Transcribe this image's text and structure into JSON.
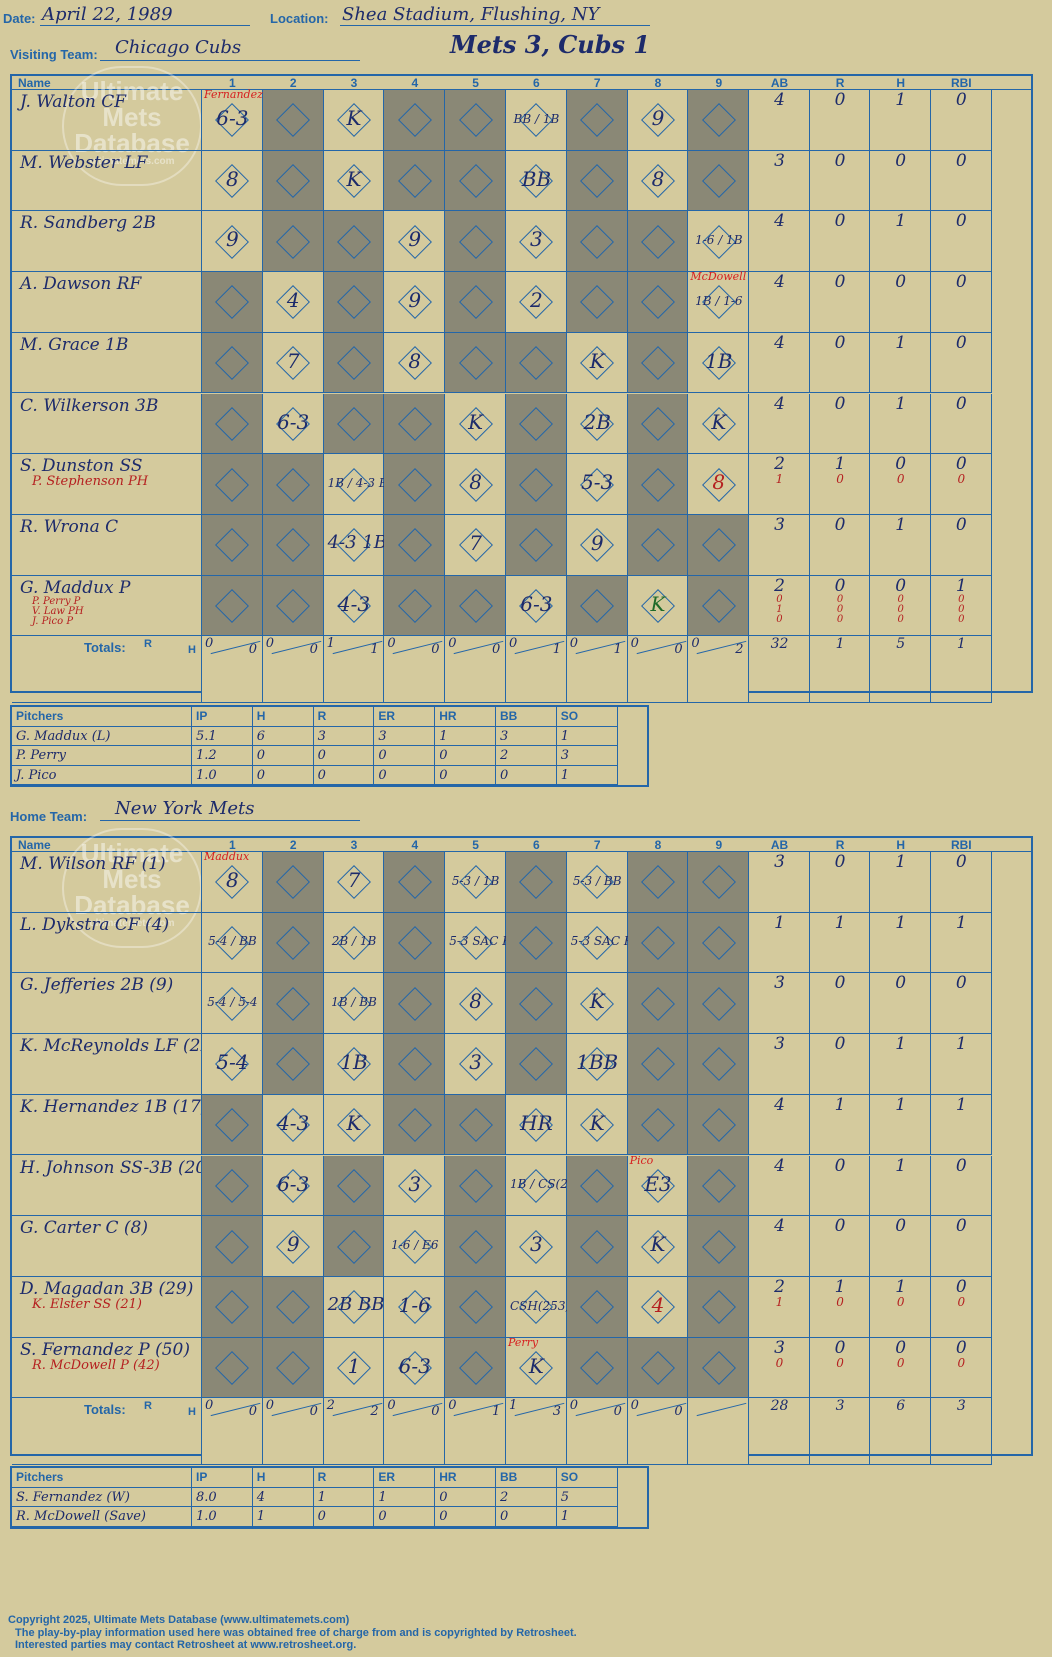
{
  "header": {
    "date_label": "Date:",
    "date": "April 22, 1989",
    "location_label": "Location:",
    "location": "Shea Stadium, Flushing, NY",
    "visiting_label": "Visiting Team:",
    "visiting_team": "Chicago Cubs",
    "home_label": "Home Team:",
    "home_team": "New York Mets",
    "score_title": "Mets 3, Cubs 1"
  },
  "watermark": {
    "line1": "Ultimate",
    "line2": "Mets",
    "line3": "Database",
    "line4": "ultimatemets.com"
  },
  "columns": {
    "name": "Name",
    "innings": [
      "1",
      "2",
      "3",
      "4",
      "5",
      "6",
      "7",
      "8",
      "9"
    ],
    "stats": [
      "AB",
      "R",
      "H",
      "RBI"
    ],
    "totals_label": "Totals:",
    "r": "R",
    "h": "H"
  },
  "visitors": {
    "rows": [
      {
        "name": "J. Walton CF",
        "subs": [],
        "stats": [
          [
            "4",
            "0",
            "1",
            "0"
          ]
        ],
        "marks": {
          "1": "6-3",
          "3": "K",
          "6": "BB / 1B",
          "8": "9"
        },
        "notes": {
          "1": "Fernandez"
        }
      },
      {
        "name": "M. Webster LF",
        "subs": [],
        "stats": [
          [
            "3",
            "0",
            "0",
            "0"
          ]
        ],
        "marks": {
          "1": "8",
          "3": "K",
          "6": "BB",
          "8": "8"
        }
      },
      {
        "name": "R. Sandberg 2B",
        "subs": [],
        "stats": [
          [
            "4",
            "0",
            "1",
            "0"
          ]
        ],
        "marks": {
          "1": "9",
          "4": "9",
          "6": "3",
          "9": "1-6 / 1B"
        }
      },
      {
        "name": "A. Dawson RF",
        "subs": [],
        "stats": [
          [
            "4",
            "0",
            "0",
            "0"
          ]
        ],
        "marks": {
          "2": "4",
          "4": "9",
          "6": "2",
          "9": "1B / 1-6"
        },
        "notes": {
          "9": "McDowell"
        }
      },
      {
        "name": "M. Grace 1B",
        "subs": [],
        "stats": [
          [
            "4",
            "0",
            "1",
            "0"
          ]
        ],
        "marks": {
          "2": "7",
          "4": "8",
          "7": "K",
          "9": "1B"
        }
      },
      {
        "name": "C. Wilkerson 3B",
        "subs": [],
        "stats": [
          [
            "4",
            "0",
            "1",
            "0"
          ]
        ],
        "marks": {
          "2": "6-3",
          "5": "K",
          "7": "2B",
          "9": "K"
        }
      },
      {
        "name": "S. Dunston SS",
        "subs": [
          "P. Stephenson PH"
        ],
        "stats": [
          [
            "2",
            "1",
            "0",
            "0"
          ],
          [
            "1",
            "0",
            "0",
            "0"
          ]
        ],
        "marks": {
          "3": "1B / 4-3 BB",
          "5": "8",
          "7": "5-3",
          "9": "8"
        }
      },
      {
        "name": "R. Wrona C",
        "subs": [],
        "stats": [
          [
            "3",
            "0",
            "1",
            "0"
          ]
        ],
        "marks": {
          "3": "4-3 1B",
          "5": "7",
          "7": "9"
        }
      },
      {
        "name": "G. Maddux P",
        "subs": [
          "P. Perry P",
          "V. Law PH",
          "J. Pico P"
        ],
        "stats": [
          [
            "2",
            "0",
            "0",
            "1"
          ],
          [
            "0",
            "0",
            "0",
            "0"
          ],
          [
            "1",
            "0",
            "0",
            "0"
          ],
          [
            "0",
            "0",
            "0",
            "0"
          ]
        ],
        "marks": {
          "3": "4-3",
          "6": "6-3",
          "8": "K"
        }
      }
    ],
    "totals_innings": [
      [
        "0",
        "0"
      ],
      [
        "0",
        "0"
      ],
      [
        "1",
        "1"
      ],
      [
        "0",
        "0"
      ],
      [
        "0",
        "0"
      ],
      [
        "0",
        "1"
      ],
      [
        "0",
        "1"
      ],
      [
        "0",
        "0"
      ],
      [
        "0",
        "2"
      ]
    ],
    "totals_stats": [
      "32",
      "1",
      "5",
      "1"
    ]
  },
  "visitor_pitchers": {
    "headers": [
      "Pitchers",
      "IP",
      "H",
      "R",
      "ER",
      "HR",
      "BB",
      "SO"
    ],
    "rows": [
      [
        "G. Maddux (L)",
        "5.1",
        "6",
        "3",
        "3",
        "1",
        "3",
        "1"
      ],
      [
        "P. Perry",
        "1.2",
        "0",
        "0",
        "0",
        "0",
        "2",
        "3"
      ],
      [
        "J. Pico",
        "1.0",
        "0",
        "0",
        "0",
        "0",
        "0",
        "1"
      ]
    ]
  },
  "home": {
    "rows": [
      {
        "name": "M. Wilson RF (1)",
        "subs": [],
        "stats": [
          [
            "3",
            "0",
            "1",
            "0"
          ]
        ],
        "marks": {
          "1": "8",
          "3": "7",
          "5": "5-3 / 1B",
          "7": "5-3 / BB"
        },
        "notes": {
          "1": "Maddux"
        }
      },
      {
        "name": "L. Dykstra CF (4)",
        "subs": [],
        "stats": [
          [
            "1",
            "1",
            "1",
            "1"
          ]
        ],
        "marks": {
          "1": "5-4 / BB",
          "3": "2B / 1B",
          "5": "5-3 SAC HIT",
          "7": "5-3 SAC HIT"
        }
      },
      {
        "name": "G. Jefferies 2B (9)",
        "subs": [],
        "stats": [
          [
            "3",
            "0",
            "0",
            "0"
          ]
        ],
        "marks": {
          "1": "5-4 / 5-4",
          "3": "1B / BB",
          "5": "8",
          "7": "K"
        }
      },
      {
        "name": "K. McReynolds LF (22)",
        "subs": [],
        "stats": [
          [
            "3",
            "0",
            "1",
            "1"
          ]
        ],
        "marks": {
          "1": "5-4",
          "3": "1B",
          "5": "3",
          "7": "1BB"
        }
      },
      {
        "name": "K. Hernandez 1B (17)",
        "subs": [],
        "stats": [
          [
            "4",
            "1",
            "1",
            "1"
          ]
        ],
        "marks": {
          "2": "4-3",
          "3": "K",
          "6": "HR",
          "7": "K"
        }
      },
      {
        "name": "H. Johnson SS-3B (20)",
        "subs": [],
        "stats": [
          [
            "4",
            "0",
            "1",
            "0"
          ]
        ],
        "marks": {
          "2": "6-3",
          "4": "3",
          "6": "1B / CS(253)",
          "8": "E3"
        },
        "notes": {
          "8": "Pico"
        }
      },
      {
        "name": "G. Carter C (8)",
        "subs": [],
        "stats": [
          [
            "4",
            "0",
            "0",
            "0"
          ]
        ],
        "marks": {
          "2": "9",
          "4": "1-6 / E6",
          "6": "3",
          "8": "K"
        }
      },
      {
        "name": "D. Magadan 3B (29)",
        "subs": [
          "K. Elster SS (21)"
        ],
        "stats": [
          [
            "2",
            "1",
            "1",
            "0"
          ],
          [
            "1",
            "0",
            "0",
            "0"
          ]
        ],
        "marks": {
          "3": "2B BB",
          "4": "1-6",
          "6": "CSH(253) / 1B",
          "8": "4"
        }
      },
      {
        "name": "S. Fernandez P (50)",
        "subs": [
          "R. McDowell P (42)"
        ],
        "stats": [
          [
            "3",
            "0",
            "0",
            "0"
          ],
          [
            "0",
            "0",
            "0",
            "0"
          ]
        ],
        "marks": {
          "3": "1",
          "4": "6-3",
          "6": "K"
        },
        "notes": {
          "6": "Perry"
        }
      }
    ],
    "totals_innings": [
      [
        "0",
        "0"
      ],
      [
        "0",
        "0"
      ],
      [
        "2",
        "2"
      ],
      [
        "0",
        "0"
      ],
      [
        "0",
        "1"
      ],
      [
        "1",
        "3"
      ],
      [
        "0",
        "0"
      ],
      [
        "0",
        "0"
      ],
      [
        "",
        ""
      ]
    ],
    "totals_stats": [
      "28",
      "3",
      "6",
      "3"
    ]
  },
  "home_pitchers": {
    "headers": [
      "Pitchers",
      "IP",
      "H",
      "R",
      "ER",
      "HR",
      "BB",
      "SO"
    ],
    "rows": [
      [
        "S. Fernandez (W)",
        "8.0",
        "4",
        "1",
        "1",
        "0",
        "2",
        "5"
      ],
      [
        "R. McDowell (Save)",
        "1.0",
        "1",
        "0",
        "0",
        "0",
        "0",
        "1"
      ]
    ]
  },
  "footer": {
    "line1": "Copyright 2025, Ultimate Mets Database (www.ultimatemets.com)",
    "line2": "The play-by-play information used here was obtained free of charge from and is copyrighted by Retrosheet.",
    "line3": "Interested parties may contact Retrosheet at www.retrosheet.org."
  },
  "colors": {
    "background": "#d4ca9d",
    "grid": "#2466a8",
    "ink": "#1d2b6b",
    "red": "#b52020",
    "shade": "#8a8876"
  }
}
